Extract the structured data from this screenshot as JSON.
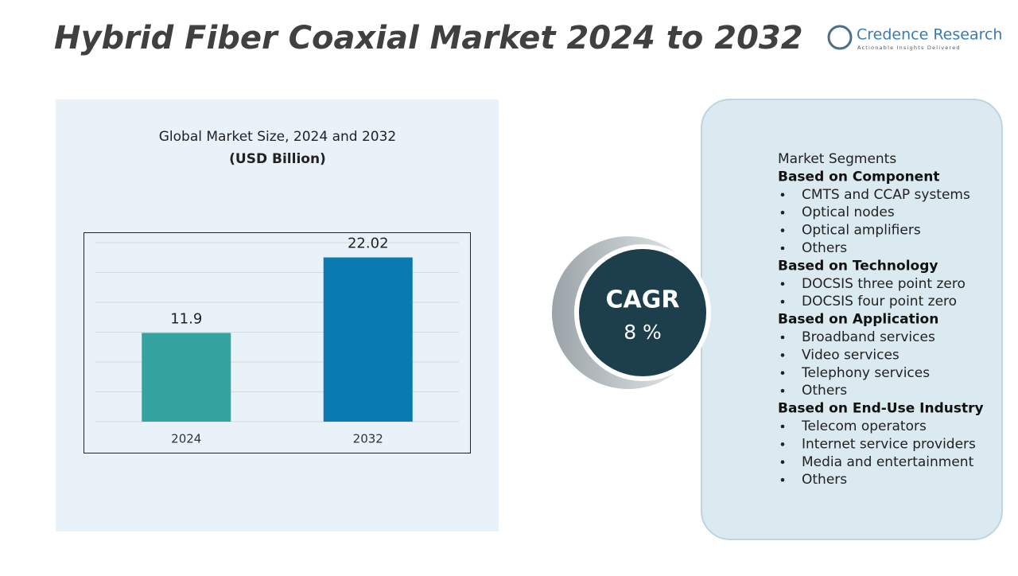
{
  "header": {
    "title": "Hybrid Fiber Coaxial Market 2024 to 2032",
    "logo_name": "Credence Research",
    "logo_tagline": "Actionable Insights Delivered"
  },
  "chart_data": {
    "type": "bar",
    "title": "Global Market Size, 2024 and 2032",
    "subtitle": "(USD Billion)",
    "categories": [
      "2024",
      "2032"
    ],
    "series": [
      {
        "name": "2024",
        "color": "#35a3a0",
        "values": [
          11.9,
          null
        ]
      },
      {
        "name": "2032",
        "color": "#0a7bb0",
        "values": [
          null,
          22.02
        ]
      }
    ],
    "ylim": [
      0,
      24
    ],
    "yticks": [
      0,
      4,
      8,
      12,
      16,
      20,
      24
    ],
    "grid": true
  },
  "cagr": {
    "label": "CAGR",
    "value": "8 %"
  },
  "segments": {
    "title": "Market Segments",
    "groups": [
      {
        "heading": "Based on Component",
        "items": [
          "CMTS and CCAP systems",
          "Optical nodes",
          "Optical amplifiers",
          "Others"
        ]
      },
      {
        "heading": "Based on Technology",
        "items": [
          "DOCSIS three point zero",
          "DOCSIS four point zero"
        ]
      },
      {
        "heading": "Based on Application",
        "items": [
          "Broadband services",
          "Video services",
          "Telephony services",
          "Others"
        ]
      },
      {
        "heading": "Based on End-Use Industry",
        "items": [
          "Telecom operators",
          "Internet service providers",
          "Media and entertainment",
          "Others"
        ]
      }
    ]
  }
}
